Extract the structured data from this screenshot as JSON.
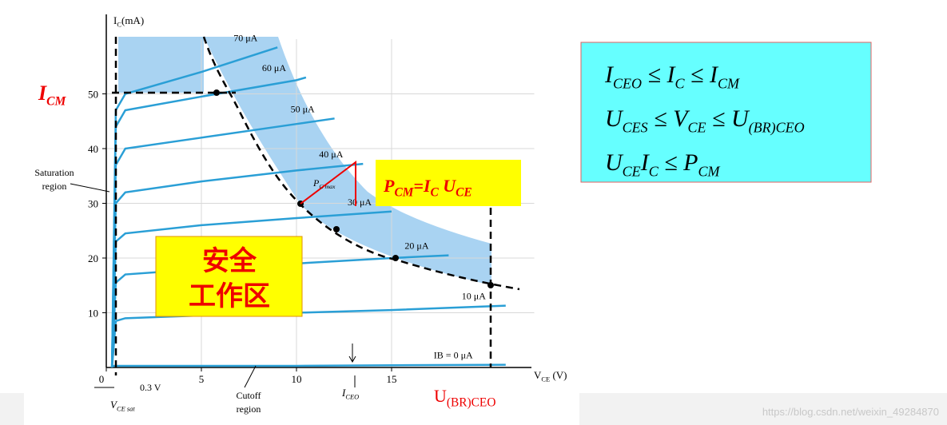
{
  "chart_data": {
    "type": "line",
    "y_label": [
      "I",
      "C",
      "(mA)"
    ],
    "x_label": [
      "V",
      "CE",
      " (V)"
    ],
    "xlim": [
      0,
      22.5
    ],
    "ylim": [
      0,
      60
    ],
    "xticks": [
      0,
      5,
      10,
      15
    ],
    "yticks": [
      10,
      20,
      30,
      40,
      50
    ],
    "grid": true,
    "series": [
      {
        "name": "IB = 0 μA",
        "color": "#2a9fd6",
        "x": [
          0.3,
          1,
          5,
          10,
          15,
          21
        ],
        "values": [
          0.3,
          0.3,
          0.3,
          0.3,
          0.4,
          0.5
        ]
      },
      {
        "name": "10 μA",
        "color": "#2a9fd6",
        "x": [
          0.3,
          0.5,
          1,
          5,
          10,
          15,
          21
        ],
        "values": [
          0,
          8.5,
          9,
          9.5,
          10,
          10.5,
          11.3
        ]
      },
      {
        "name": "20 μA",
        "color": "#2a9fd6",
        "x": [
          0.3,
          0.5,
          1,
          5,
          10,
          15,
          18
        ],
        "values": [
          0,
          15.5,
          17,
          18,
          19,
          20,
          20.5
        ]
      },
      {
        "name": "30 μA",
        "color": "#2a9fd6",
        "x": [
          0.3,
          0.5,
          1,
          5,
          10,
          15
        ],
        "values": [
          0,
          23,
          24.5,
          26,
          27.3,
          28.5
        ]
      },
      {
        "name": "40 μA",
        "color": "#2a9fd6",
        "x": [
          0.3,
          0.5,
          1,
          5,
          10,
          13.5
        ],
        "values": [
          0,
          30,
          32,
          34,
          36,
          37.2
        ]
      },
      {
        "name": "50 μA",
        "color": "#2a9fd6",
        "x": [
          0.3,
          0.5,
          1,
          5,
          10,
          12
        ],
        "values": [
          0,
          37,
          40,
          42,
          44.5,
          45.5
        ]
      },
      {
        "name": "60 μA",
        "color": "#2a9fd6",
        "x": [
          0.3,
          0.5,
          1,
          5,
          10,
          10.5
        ],
        "values": [
          0,
          44,
          47,
          49.5,
          52.5,
          53
        ]
      },
      {
        "name": "70 μA",
        "color": "#2a9fd6",
        "x": [
          0.3,
          0.5,
          1,
          5,
          9
        ],
        "values": [
          0,
          47,
          50,
          54,
          58.5
        ]
      }
    ],
    "annotations": {
      "icm": [
        "I",
        "CM"
      ],
      "saturation": [
        "Saturation",
        "region"
      ],
      "cutoff": [
        "Cutoff",
        "region"
      ],
      "vce_sat_step": "0.3 V",
      "vce_sat": [
        "V",
        "CE sat"
      ],
      "iceo": [
        "I",
        "CEO"
      ],
      "ubr": [
        "U",
        "(BR)CEO"
      ],
      "pcmax": [
        "P",
        "C max"
      ],
      "pcm_formula": [
        "P",
        "CM",
        "=I",
        "C",
        " U",
        "CE"
      ],
      "safe_area": [
        "安全",
        "工作区"
      ]
    },
    "conditions": [
      [
        "I",
        "CEO",
        " ≤ I",
        "C",
        " ≤ I",
        "CM"
      ],
      [
        "U",
        "CES",
        " ≤ V",
        "CE",
        " ≤ U",
        "(BR)CEO"
      ],
      [
        "U",
        "CE",
        "I",
        "C",
        " ≤ P",
        "CM"
      ]
    ],
    "watermark": "https://blog.csdn.net/weixin_49284870"
  }
}
